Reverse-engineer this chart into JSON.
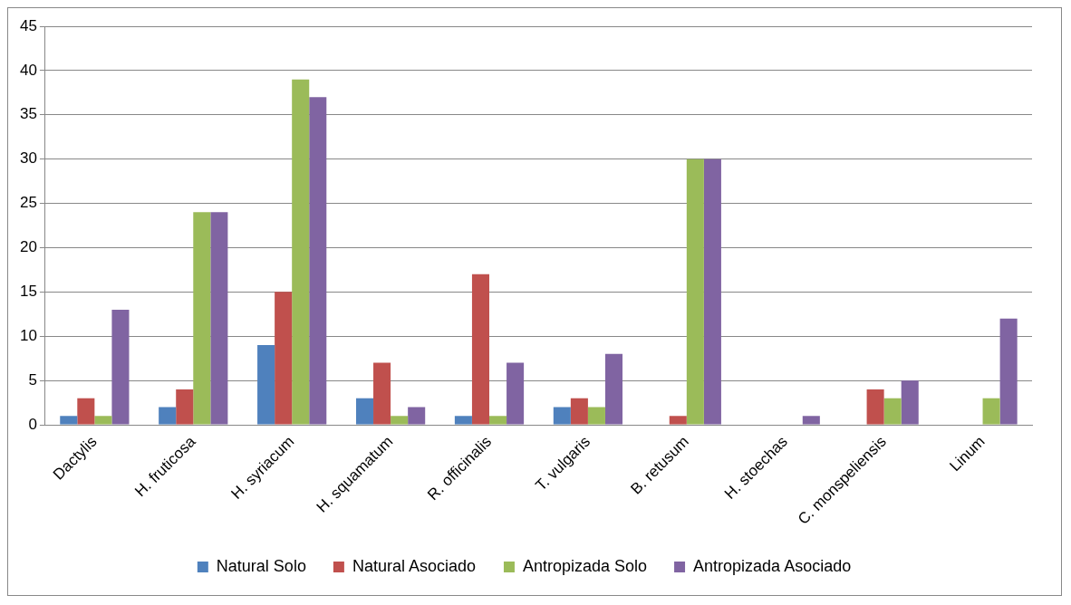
{
  "chart_data": {
    "type": "bar",
    "categories": [
      "Dactylis",
      "H. fruticosa",
      "H. syriacum",
      "H. squamatum",
      "R. officinalis",
      "T. vulgaris",
      "B. retusum",
      "H. stoechas",
      "C. monspeliensis",
      "Linum"
    ],
    "series": [
      {
        "name": "Natural Solo",
        "color": "#4f81bd",
        "values": [
          1,
          2,
          9,
          3,
          1,
          2,
          0,
          0,
          0,
          0
        ]
      },
      {
        "name": "Natural Asociado",
        "color": "#c0504d",
        "values": [
          3,
          4,
          15,
          7,
          17,
          3,
          1,
          0,
          4,
          0
        ]
      },
      {
        "name": "Antropizada Solo",
        "color": "#9bbb59",
        "values": [
          1,
          24,
          39,
          1,
          1,
          2,
          30,
          0,
          3,
          3
        ]
      },
      {
        "name": "Antropizada Asociado",
        "color": "#8064a2",
        "values": [
          13,
          24,
          37,
          2,
          7,
          8,
          30,
          1,
          5,
          12
        ]
      }
    ],
    "ylim": [
      0,
      45
    ],
    "yticks": [
      0,
      5,
      10,
      15,
      20,
      25,
      30,
      35,
      40,
      45
    ],
    "grid": "y",
    "legend": "bottom"
  }
}
